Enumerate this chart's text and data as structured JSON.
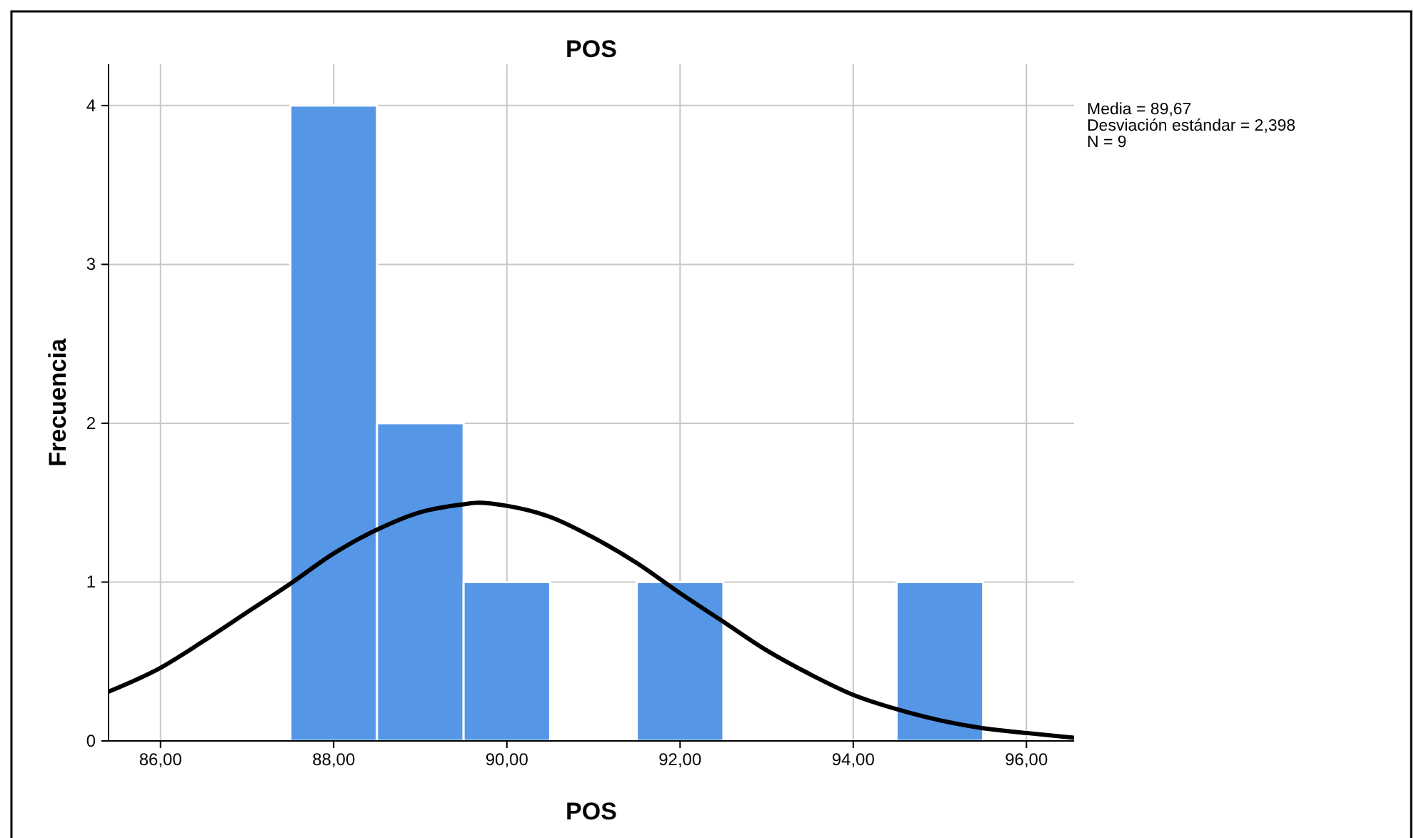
{
  "chart_data": {
    "type": "histogram",
    "title": "POS",
    "xlabel": "POS",
    "ylabel": "Frecuencia",
    "bins": [
      87.5,
      88.5,
      89.5,
      90.5,
      91.5,
      92.5,
      93.5,
      94.5,
      95.5
    ],
    "values": [
      4,
      2,
      1,
      0,
      1,
      0,
      0,
      1
    ],
    "color": "#5596e6",
    "series": [
      {
        "type": "line",
        "color": "#000000",
        "x": [
          85.4,
          86,
          86.5,
          87,
          87.5,
          88,
          88.5,
          89,
          89.5,
          89.67,
          90,
          90.5,
          91,
          91.5,
          92,
          92.5,
          93,
          93.5,
          94,
          94.5,
          95,
          95.5,
          96,
          96.55
        ],
        "values": [
          0.31,
          0.46,
          0.63,
          0.81,
          0.99,
          1.18,
          1.33,
          1.44,
          1.49,
          1.5,
          1.48,
          1.41,
          1.28,
          1.12,
          0.93,
          0.75,
          0.57,
          0.42,
          0.29,
          0.2,
          0.13,
          0.08,
          0.05,
          0.02
        ]
      }
    ],
    "xlim": [
      85.4,
      96.55
    ],
    "ylim": [
      0,
      4.26
    ],
    "xticks": [
      {
        "value": 86,
        "label": "86,00"
      },
      {
        "value": 88,
        "label": "88,00"
      },
      {
        "value": 90,
        "label": "90,00"
      },
      {
        "value": 92,
        "label": "92,00"
      },
      {
        "value": 94,
        "label": "94,00"
      },
      {
        "value": 96,
        "label": "96,00"
      }
    ],
    "yticks": [
      0,
      1,
      2,
      3,
      4
    ],
    "grid": true,
    "marker": "none",
    "line_style": "solid",
    "annotations": [
      "Media = 89,67",
      "Desviación estándar = 2,398",
      "N = 9"
    ]
  }
}
